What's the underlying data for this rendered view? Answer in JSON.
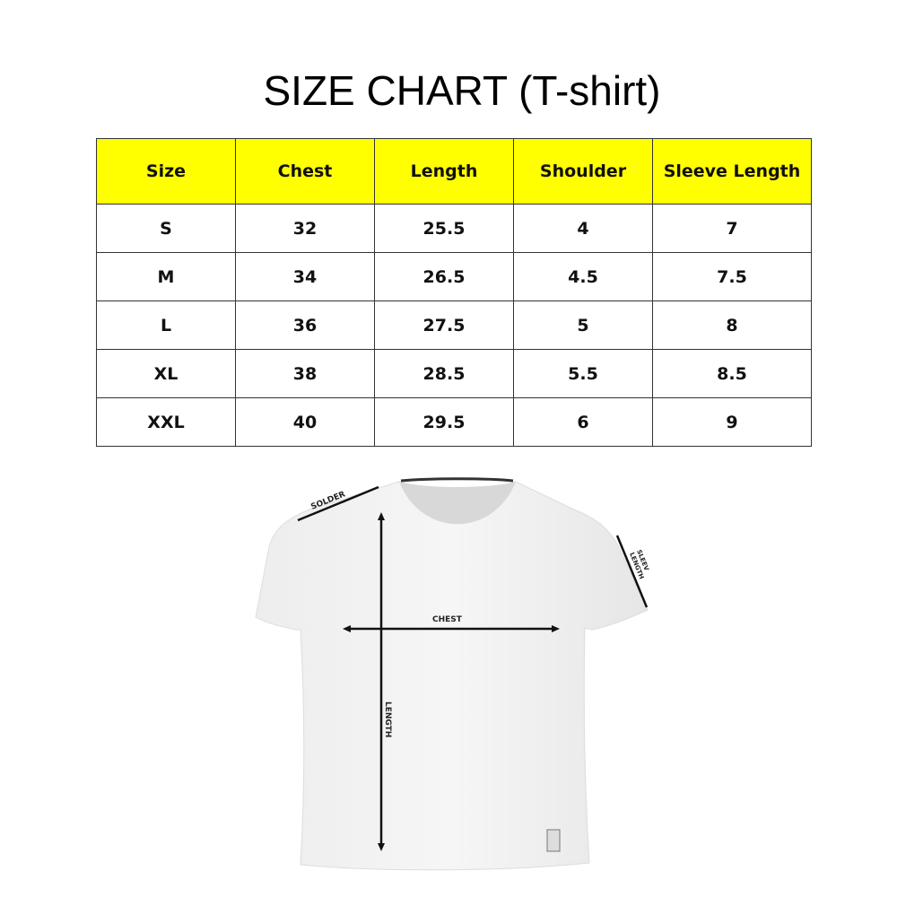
{
  "title": "SIZE CHART (T-shirt)",
  "table": {
    "headers": [
      "Size",
      "Chest",
      "Length",
      "Shoulder",
      "Sleeve Length"
    ],
    "rows": [
      [
        "S",
        "32",
        "25.5",
        "4",
        "7"
      ],
      [
        "M",
        "34",
        "26.5",
        "4.5",
        "7.5"
      ],
      [
        "L",
        "36",
        "27.5",
        "5",
        "8"
      ],
      [
        "XL",
        "38",
        "28.5",
        "5.5",
        "8.5"
      ],
      [
        "XXL",
        "40",
        "29.5",
        "6",
        "9"
      ]
    ],
    "header_color": "#ffff00"
  },
  "diagram": {
    "solder_label": "SOLDER",
    "sleeve_label_1": "SLEEV",
    "sleeve_label_2": "LENGTH",
    "chest_label": "CHEST",
    "length_label": "LENGTH"
  }
}
